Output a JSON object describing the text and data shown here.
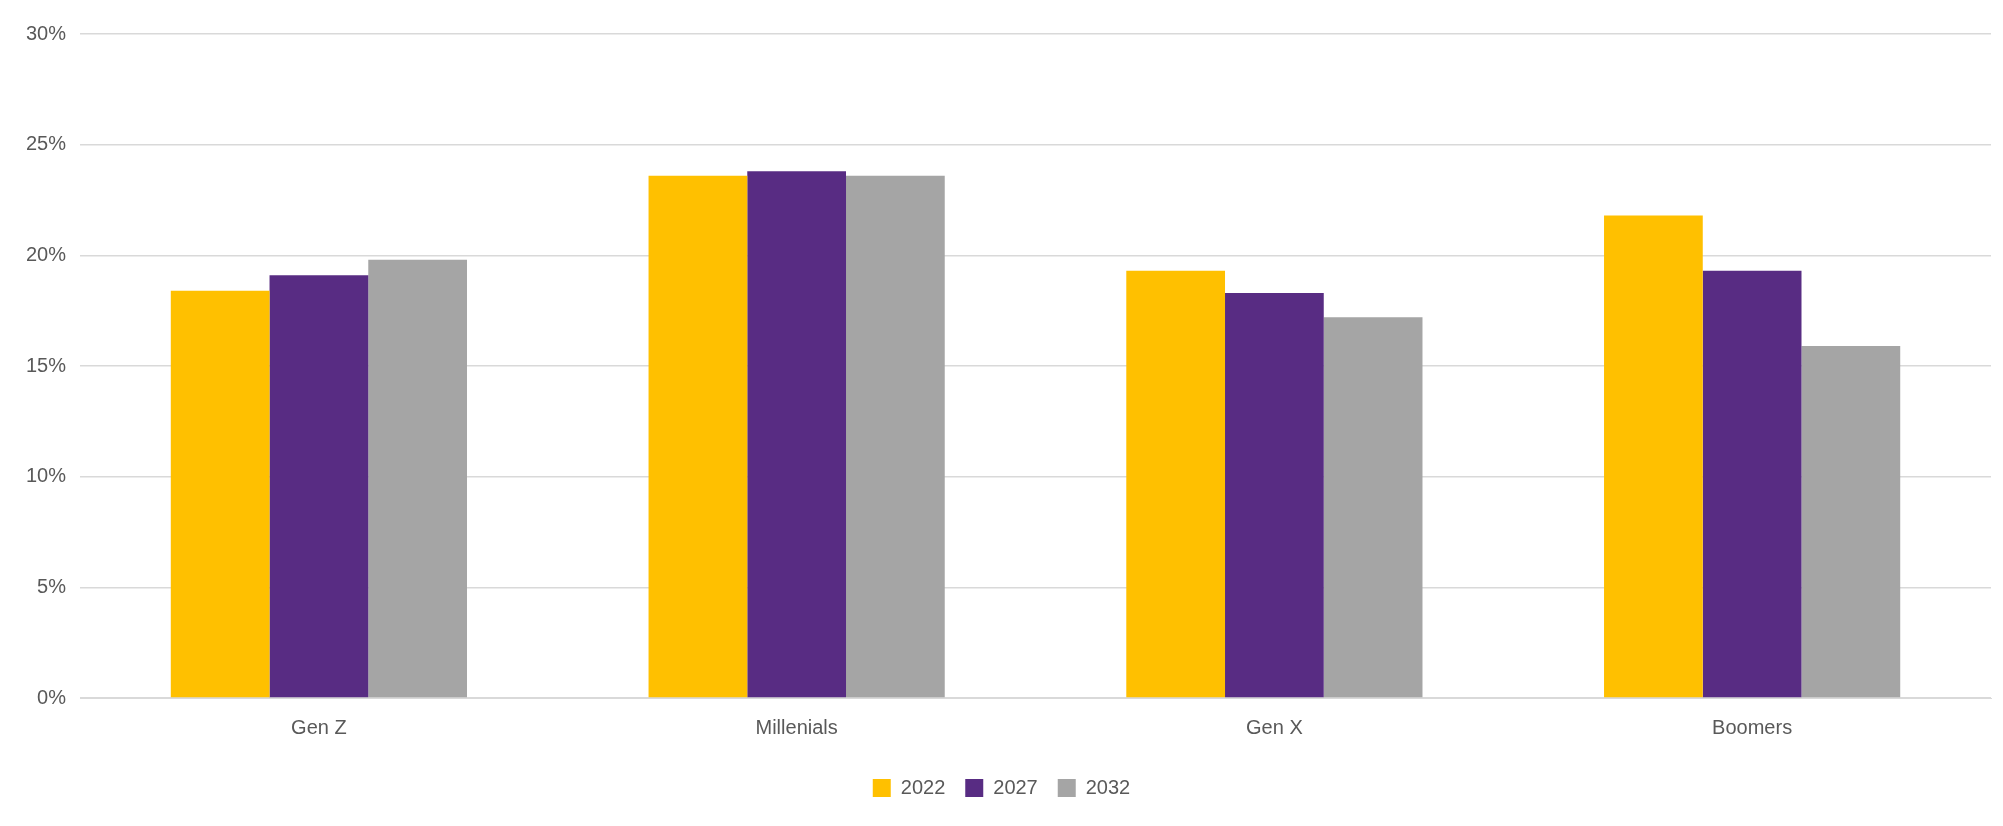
{
  "chart_data": {
    "type": "bar",
    "categories": [
      "Gen Z",
      "Millenials",
      "Gen X",
      "Boomers"
    ],
    "series": [
      {
        "name": "2022",
        "color": "#ffc000",
        "values": [
          18.4,
          23.6,
          19.3,
          21.8
        ]
      },
      {
        "name": "2027",
        "color": "#582c83",
        "values": [
          19.1,
          23.8,
          18.3,
          19.3
        ]
      },
      {
        "name": "2032",
        "color": "#a5a5a5",
        "values": [
          19.8,
          23.6,
          17.2,
          15.9
        ]
      }
    ],
    "ylim": [
      0,
      30
    ],
    "yticks": [
      {
        "value": 0,
        "label": "0%"
      },
      {
        "value": 5,
        "label": "5%"
      },
      {
        "value": 10,
        "label": "10%"
      },
      {
        "value": 15,
        "label": "15%"
      },
      {
        "value": 20,
        "label": "20%"
      },
      {
        "value": 25,
        "label": "25%"
      },
      {
        "value": 30,
        "label": "30%"
      }
    ],
    "grid": "y",
    "legend": "bottom"
  }
}
